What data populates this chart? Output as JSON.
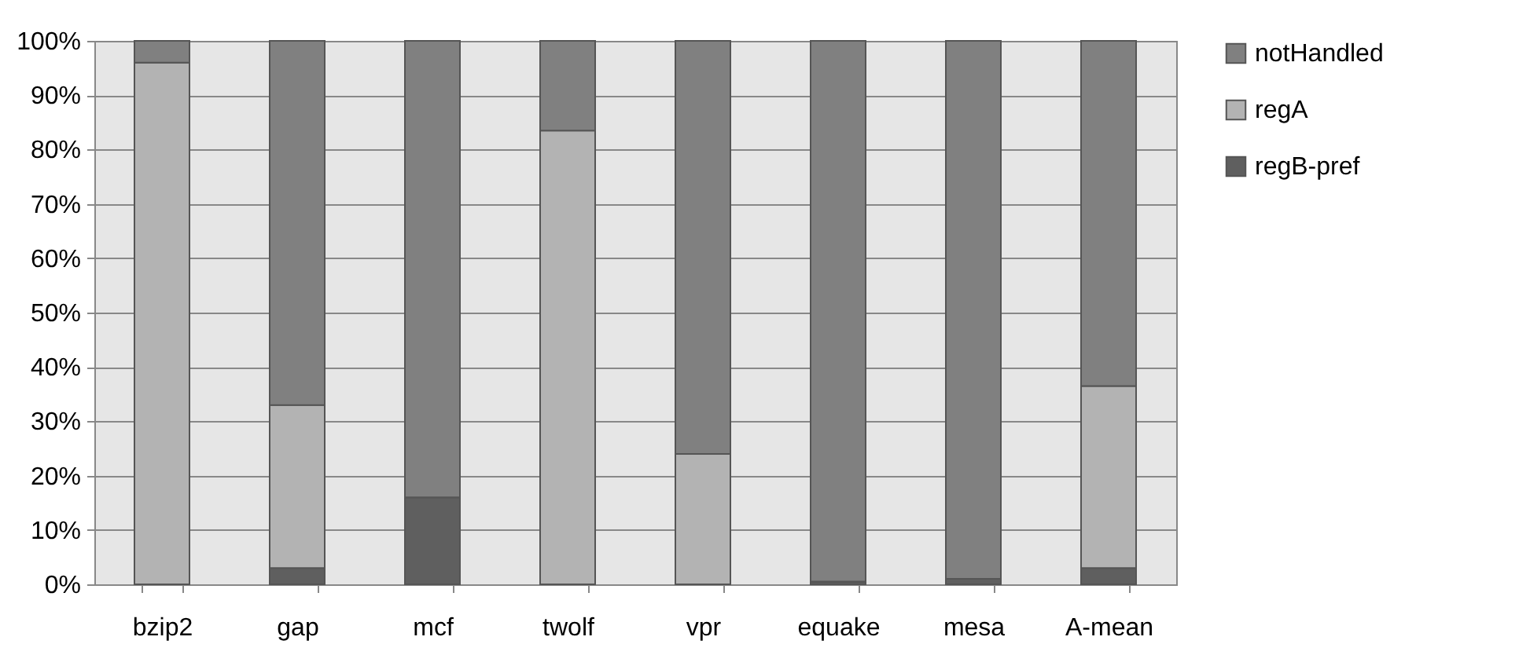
{
  "chart_data": {
    "type": "bar",
    "stacked": true,
    "categories": [
      "bzip2",
      "gap",
      "mcf",
      "twolf",
      "vpr",
      "equake",
      "mesa",
      "A-mean"
    ],
    "series": [
      {
        "name": "regB-pref",
        "color": "#5f5f5f",
        "values": [
          0,
          3,
          16,
          0,
          0,
          0.5,
          1,
          3
        ]
      },
      {
        "name": "regA",
        "color": "#b3b3b3",
        "values": [
          96,
          30,
          0,
          83.5,
          24,
          0,
          0,
          33.5
        ]
      },
      {
        "name": "notHandled",
        "color": "#808080",
        "values": [
          4,
          67,
          84,
          16.5,
          76,
          99.5,
          99,
          63.5
        ]
      }
    ],
    "ylim": [
      0,
      100
    ],
    "yticks": [
      {
        "value": 0,
        "label": "0%"
      },
      {
        "value": 10,
        "label": "10%"
      },
      {
        "value": 20,
        "label": "20%"
      },
      {
        "value": 30,
        "label": "30%"
      },
      {
        "value": 40,
        "label": "40%"
      },
      {
        "value": 50,
        "label": "50%"
      },
      {
        "value": 60,
        "label": "60%"
      },
      {
        "value": 70,
        "label": "70%"
      },
      {
        "value": 80,
        "label": "80%"
      },
      {
        "value": 90,
        "label": "90%"
      },
      {
        "value": 100,
        "label": "100%"
      }
    ],
    "grid": "y",
    "legend": "right"
  }
}
